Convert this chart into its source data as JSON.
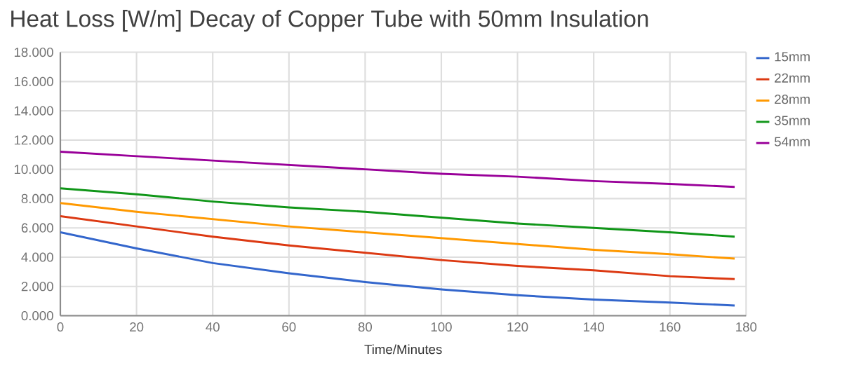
{
  "chart_data": {
    "type": "line",
    "title": "Heat Loss [W/m] Decay of Copper Tube with 50mm Insulation",
    "xlabel": "Time/Minutes",
    "x": [
      0,
      20,
      40,
      60,
      80,
      100,
      120,
      140,
      160,
      177
    ],
    "series": [
      {
        "name": "15mm",
        "color": "#3366cc",
        "values": [
          5.7,
          4.6,
          3.6,
          2.9,
          2.3,
          1.8,
          1.4,
          1.1,
          0.9,
          0.7
        ]
      },
      {
        "name": "22mm",
        "color": "#dc3912",
        "values": [
          6.8,
          6.1,
          5.4,
          4.8,
          4.3,
          3.8,
          3.4,
          3.1,
          2.7,
          2.5
        ]
      },
      {
        "name": "28mm",
        "color": "#ff9900",
        "values": [
          7.7,
          7.1,
          6.6,
          6.1,
          5.7,
          5.3,
          4.9,
          4.5,
          4.2,
          3.9
        ]
      },
      {
        "name": "35mm",
        "color": "#109618",
        "values": [
          8.7,
          8.3,
          7.8,
          7.4,
          7.1,
          6.7,
          6.3,
          6.0,
          5.7,
          5.4
        ]
      },
      {
        "name": "54mm",
        "color": "#990099",
        "values": [
          11.2,
          10.9,
          10.6,
          10.3,
          10.0,
          9.7,
          9.5,
          9.2,
          9.0,
          8.8
        ]
      }
    ],
    "xlim": [
      0,
      180
    ],
    "xticks": [
      0,
      20,
      40,
      60,
      80,
      100,
      120,
      140,
      160,
      180
    ],
    "ylim": [
      0,
      18
    ],
    "yticks": [
      {
        "value": 0,
        "label": "0.000"
      },
      {
        "value": 2,
        "label": "2.000"
      },
      {
        "value": 4,
        "label": "4.000"
      },
      {
        "value": 6,
        "label": "6.000"
      },
      {
        "value": 8,
        "label": "8.000"
      },
      {
        "value": 10,
        "label": "10.000"
      },
      {
        "value": 12,
        "label": "12.000"
      },
      {
        "value": 14,
        "label": "14.000"
      },
      {
        "value": 16,
        "label": "16.000"
      },
      {
        "value": 18,
        "label": "18.000"
      }
    ],
    "grid": true,
    "legend": "top right",
    "marker": "none",
    "line_style": "solid"
  }
}
